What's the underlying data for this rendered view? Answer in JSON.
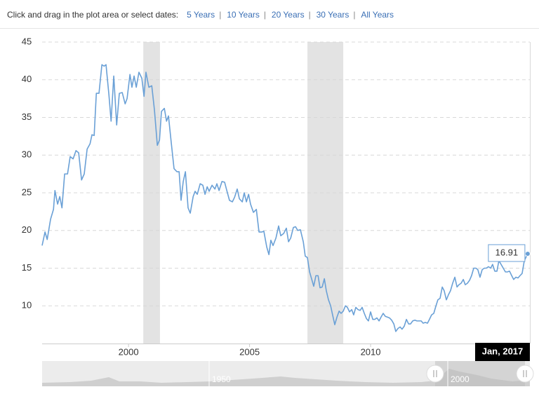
{
  "header": {
    "prompt": "Click and drag in the plot area or select dates:",
    "links": [
      "5 Years",
      "10 Years",
      "20 Years",
      "30 Years",
      "All Years"
    ]
  },
  "chart_data": {
    "type": "line",
    "color": "#6aa0d6",
    "x": [
      1996.43,
      1996.55,
      1996.64,
      1996.78,
      1996.9,
      1996.96,
      1997.07,
      1997.16,
      1997.25,
      1997.36,
      1997.48,
      1997.59,
      1997.71,
      1997.83,
      1997.94,
      1998.06,
      1998.17,
      1998.29,
      1998.41,
      1998.49,
      1998.58,
      1998.67,
      1998.78,
      1998.9,
      1998.99,
      1999.07,
      1999.19,
      1999.28,
      1999.39,
      1999.51,
      1999.62,
      1999.74,
      1999.86,
      1999.94,
      2000.06,
      2000.14,
      2000.23,
      2000.32,
      2000.43,
      2000.55,
      2000.64,
      2000.72,
      2000.84,
      2000.96,
      2001.07,
      2001.19,
      2001.28,
      2001.36,
      2001.48,
      2001.57,
      2001.65,
      2001.77,
      2001.88,
      2002.0,
      2002.09,
      2002.17,
      2002.26,
      2002.35,
      2002.46,
      2002.55,
      2002.67,
      2002.75,
      2002.84,
      2002.96,
      2003.07,
      2003.16,
      2003.25,
      2003.33,
      2003.45,
      2003.57,
      2003.65,
      2003.74,
      2003.86,
      2003.97,
      2004.06,
      2004.17,
      2004.29,
      2004.38,
      2004.49,
      2004.58,
      2004.7,
      2004.78,
      2004.87,
      2004.96,
      2005.04,
      2005.16,
      2005.28,
      2005.39,
      2005.51,
      2005.59,
      2005.71,
      2005.8,
      2005.88,
      2005.97,
      2006.09,
      2006.2,
      2006.29,
      2006.41,
      2006.52,
      2006.61,
      2006.7,
      2006.81,
      2006.9,
      2006.99,
      2007.1,
      2007.22,
      2007.3,
      2007.39,
      2007.48,
      2007.57,
      2007.65,
      2007.74,
      2007.83,
      2007.91,
      2008.0,
      2008.09,
      2008.17,
      2008.26,
      2008.35,
      2008.43,
      2008.52,
      2008.61,
      2008.7,
      2008.78,
      2008.87,
      2008.96,
      2009.04,
      2009.13,
      2009.22,
      2009.3,
      2009.39,
      2009.48,
      2009.57,
      2009.65,
      2009.74,
      2009.83,
      2009.91,
      2010.0,
      2010.09,
      2010.17,
      2010.26,
      2010.35,
      2010.43,
      2010.52,
      2010.61,
      2010.7,
      2010.78,
      2010.87,
      2010.96,
      2011.04,
      2011.13,
      2011.22,
      2011.3,
      2011.39,
      2011.48,
      2011.57,
      2011.65,
      2011.74,
      2011.83,
      2011.91,
      2012.0,
      2012.09,
      2012.17,
      2012.26,
      2012.35,
      2012.43,
      2012.52,
      2012.61,
      2012.7,
      2012.78,
      2012.87,
      2012.96,
      2013.04,
      2013.13,
      2013.22,
      2013.3,
      2013.39,
      2013.48,
      2013.57,
      2013.65,
      2013.74,
      2013.83,
      2013.91,
      2014.0,
      2014.09,
      2014.17,
      2014.26,
      2014.35,
      2014.43,
      2014.52,
      2014.61,
      2014.7,
      2014.78,
      2014.87,
      2014.96,
      2015.04,
      2015.13,
      2015.22,
      2015.3,
      2015.39,
      2015.48,
      2015.57,
      2015.65,
      2015.74,
      2015.83,
      2015.91,
      2016.0,
      2016.09,
      2016.17,
      2016.26,
      2016.35,
      2016.49
    ],
    "values": [
      18.0,
      19.8,
      18.8,
      21.5,
      22.8,
      25.3,
      23.5,
      24.5,
      23.0,
      27.5,
      27.5,
      29.8,
      29.5,
      30.6,
      30.3,
      26.7,
      27.5,
      30.8,
      31.5,
      32.7,
      32.6,
      38.2,
      38.2,
      42.0,
      41.8,
      42.0,
      38.0,
      34.5,
      40.5,
      34.0,
      38.2,
      38.3,
      36.8,
      37.5,
      40.7,
      39.0,
      40.5,
      39.0,
      41.0,
      40.2,
      37.8,
      41.0,
      39.0,
      39.2,
      36.0,
      31.3,
      32.0,
      35.8,
      36.2,
      34.5,
      35.2,
      31.5,
      28.2,
      27.8,
      27.8,
      24.0,
      26.5,
      27.8,
      23.0,
      22.3,
      24.5,
      25.2,
      24.8,
      26.2,
      26.0,
      24.8,
      25.8,
      25.2,
      26.0,
      25.5,
      26.2,
      25.3,
      26.5,
      26.4,
      25.3,
      24.0,
      23.8,
      24.4,
      25.5,
      24.2,
      23.8,
      25.0,
      23.8,
      24.8,
      23.5,
      22.4,
      22.8,
      19.8,
      19.8,
      19.9,
      17.8,
      16.8,
      18.7,
      18.0,
      19.0,
      20.6,
      19.3,
      19.6,
      20.3,
      18.5,
      19.0,
      20.4,
      20.5,
      20.0,
      20.1,
      18.5,
      16.6,
      16.4,
      14.5,
      13.5,
      12.6,
      14.0,
      14.0,
      12.4,
      12.5,
      13.6,
      12.0,
      10.8,
      10.0,
      8.8,
      7.5,
      8.5,
      9.3,
      9.0,
      9.3,
      10.0,
      9.8,
      9.2,
      9.5,
      8.8,
      9.8,
      9.5,
      9.4,
      9.8,
      9.0,
      8.3,
      8.0,
      9.2,
      8.2,
      8.2,
      8.4,
      8.0,
      8.5,
      9.0,
      8.6,
      8.5,
      8.4,
      8.1,
      7.6,
      6.6,
      7.0,
      7.2,
      6.9,
      7.3,
      8.2,
      7.6,
      7.6,
      8.0,
      8.1,
      8.0,
      8.0,
      8.0,
      7.7,
      7.8,
      7.7,
      8.2,
      8.8,
      9.0,
      10.0,
      10.8,
      11.0,
      12.5,
      12.0,
      10.8,
      11.5,
      12.0,
      13.0,
      13.8,
      12.5,
      12.8,
      13.0,
      13.5,
      12.8,
      13.0,
      13.4,
      14.0,
      15.0,
      15.0,
      14.8,
      13.8,
      14.8,
      15.0,
      15.0,
      15.2,
      15.0,
      15.5,
      14.6,
      14.6,
      16.0,
      15.5,
      15.0,
      14.5,
      14.5,
      14.6,
      14.0,
      13.5,
      13.8,
      13.7,
      14.0,
      14.3,
      16.0,
      16.91
    ],
    "xlim": [
      1996.43,
      2016.58
    ],
    "xticks": [
      2000,
      2005,
      2010
    ],
    "ylim": [
      5,
      45
    ],
    "yticks": [
      10,
      15,
      20,
      25,
      30,
      35,
      40,
      45
    ],
    "grid": true,
    "recessions": [
      [
        2000.61,
        2001.3
      ],
      [
        2007.39,
        2008.87
      ]
    ],
    "crosshair_label": "Jan, 2017",
    "navigator": {
      "labels": [
        "1950",
        "2000"
      ]
    }
  }
}
